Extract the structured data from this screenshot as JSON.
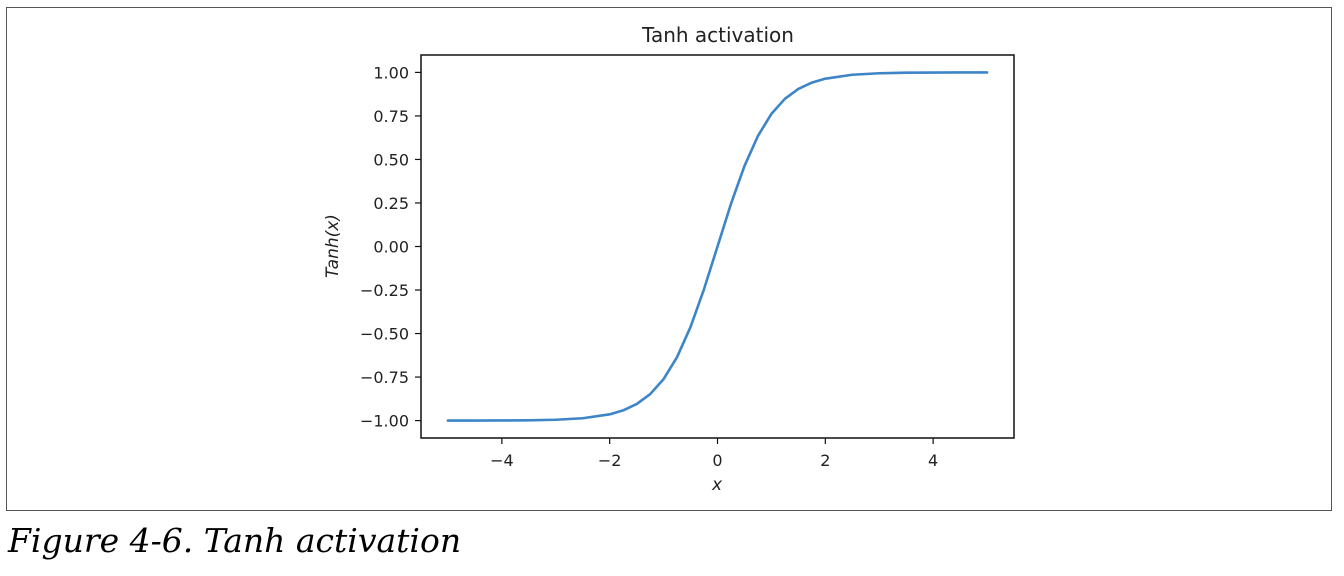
{
  "caption": "Figure 4-6. Tanh activation",
  "chart_data": {
    "type": "line",
    "title": "Tanh activation",
    "xlabel": "x",
    "ylabel": "Tanh(x)",
    "xlim": [
      -5.5,
      5.5
    ],
    "ylim": [
      -1.1,
      1.1
    ],
    "xticks": [
      -4,
      -2,
      0,
      2,
      4
    ],
    "xtick_labels": [
      "−4",
      "−2",
      "0",
      "2",
      "4"
    ],
    "yticks": [
      1.0,
      0.75,
      0.5,
      0.25,
      0.0,
      -0.25,
      -0.5,
      -0.75,
      -1.0
    ],
    "ytick_labels": [
      "1.00",
      "0.75",
      "0.50",
      "0.25",
      "0.00",
      "−0.25",
      "−0.50",
      "−0.75",
      "−1.00"
    ],
    "grid": false,
    "series": [
      {
        "color": "#3d85c6",
        "x": [
          -5,
          -4.5,
          -4,
          -3.5,
          -3,
          -2.5,
          -2,
          -1.75,
          -1.5,
          -1.25,
          -1,
          -0.75,
          -0.5,
          -0.25,
          0,
          0.25,
          0.5,
          0.75,
          1,
          1.25,
          1.5,
          1.75,
          2,
          2.5,
          3,
          3.5,
          4,
          4.5,
          5
        ],
        "y": [
          -0.9999,
          -0.9998,
          -0.9993,
          -0.9982,
          -0.9951,
          -0.9866,
          -0.964,
          -0.9414,
          -0.9051,
          -0.8483,
          -0.7616,
          -0.6351,
          -0.4621,
          -0.2449,
          0.0,
          0.2449,
          0.4621,
          0.6351,
          0.7616,
          0.8483,
          0.9051,
          0.9414,
          0.964,
          0.9866,
          0.9951,
          0.9982,
          0.9993,
          0.9998,
          0.9999
        ]
      }
    ]
  }
}
